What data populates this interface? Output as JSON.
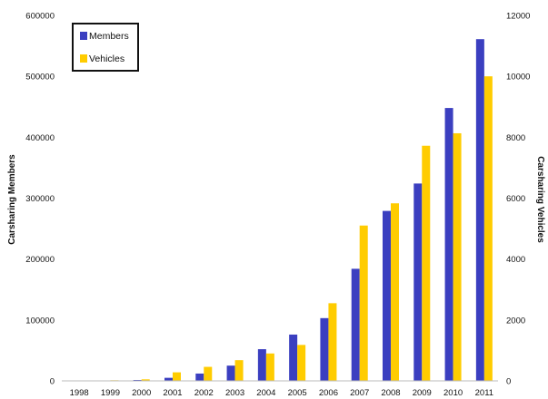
{
  "chart_data": {
    "type": "bar",
    "categories": [
      "1998",
      "1999",
      "2000",
      "2001",
      "2002",
      "2003",
      "2004",
      "2005",
      "2006",
      "2007",
      "2008",
      "2009",
      "2010",
      "2011"
    ],
    "series": [
      {
        "name": "Members",
        "axis": "left",
        "color": "#3b3fc0",
        "values": [
          0,
          500,
          1500,
          5000,
          12000,
          25000,
          52000,
          76000,
          103000,
          184000,
          279000,
          324000,
          448000,
          561000
        ]
      },
      {
        "name": "Vehicles",
        "axis": "right",
        "color": "#ffcc00",
        "values": [
          0,
          20,
          50,
          280,
          460,
          680,
          900,
          1180,
          2550,
          5100,
          5830,
          7720,
          8130,
          10000
        ]
      }
    ],
    "ylabel": "Carsharing Members",
    "y2label": "Carsharing Vehicles",
    "ylim": [
      0,
      600000
    ],
    "y2lim": [
      0,
      12000
    ],
    "yticks": [
      "0",
      "100000",
      "200000",
      "300000",
      "400000",
      "500000",
      "600000"
    ],
    "y2ticks": [
      "0",
      "2000",
      "4000",
      "6000",
      "8000",
      "10000",
      "12000"
    ],
    "legend_position": "top-left",
    "grid": false
  }
}
